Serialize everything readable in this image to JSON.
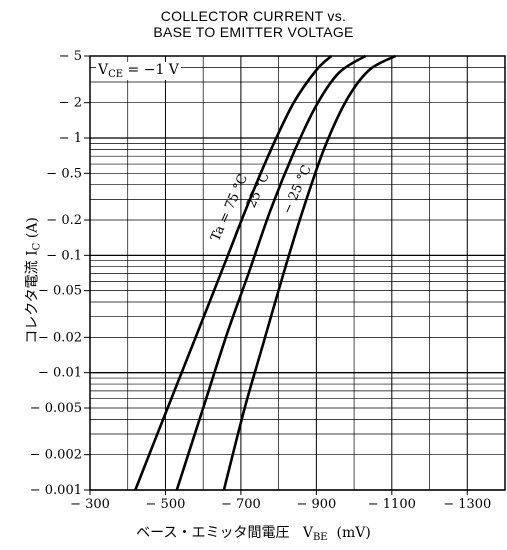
{
  "chart_data": {
    "type": "line",
    "title_line1": "COLLECTOR CURRENT vs.",
    "title_line2": "BASE TO EMITTER VOLTAGE",
    "xlabel_prefix": "ベース・エミッタ間電圧",
    "xlabel_symbol": "V",
    "xlabel_sub": "BE",
    "xlabel_unit": "(mV)",
    "ylabel_prefix": "コレクタ電流",
    "ylabel_symbol": "I",
    "ylabel_sub": "C",
    "ylabel_unit": "(A)",
    "condition_symbol": "V",
    "condition_sub": "CE",
    "condition_value": "= −1 V",
    "x_ticks": [
      {
        "value": -300,
        "label": "− 300"
      },
      {
        "value": -500,
        "label": "− 500"
      },
      {
        "value": -700,
        "label": "− 700"
      },
      {
        "value": -900,
        "label": "− 900"
      },
      {
        "value": -1100,
        "label": "− 1100"
      },
      {
        "value": -1300,
        "label": "− 1300"
      }
    ],
    "y_ticks": [
      {
        "value": -5,
        "label": "− 5"
      },
      {
        "value": -2,
        "label": "− 2"
      },
      {
        "value": -1,
        "label": "− 1"
      },
      {
        "value": -0.5,
        "label": "− 0.5"
      },
      {
        "value": -0.2,
        "label": "− 0.2"
      },
      {
        "value": -0.1,
        "label": "− 0.1"
      },
      {
        "value": -0.05,
        "label": "− 0.05"
      },
      {
        "value": -0.02,
        "label": "− 0.02"
      },
      {
        "value": -0.01,
        "label": "− 0.01"
      },
      {
        "value": -0.005,
        "label": "− 0.005"
      },
      {
        "value": -0.002,
        "label": "− 0.002"
      },
      {
        "value": -0.001,
        "label": "− 0.001"
      }
    ],
    "xlim": [
      -300,
      -1400
    ],
    "ylim": [
      -0.001,
      -5
    ],
    "yscale": "log",
    "grid": true,
    "series": [
      {
        "name": "Ta = 75 °C",
        "x": [
          -420,
          -500,
          -580,
          -660,
          -720,
          -780,
          -840,
          -900,
          -940
        ],
        "y": [
          -0.001,
          -0.0045,
          -0.02,
          -0.09,
          -0.28,
          -0.8,
          -2.0,
          -3.8,
          -5
        ]
      },
      {
        "name": "25 °C",
        "x": [
          -530,
          -600,
          -660,
          -720,
          -780,
          -840,
          -900,
          -960,
          -1030
        ],
        "y": [
          -0.001,
          -0.005,
          -0.02,
          -0.07,
          -0.25,
          -0.75,
          -1.9,
          -3.6,
          -5
        ]
      },
      {
        "name": "− 25 °C",
        "x": [
          -655,
          -710,
          -760,
          -810,
          -860,
          -920,
          -980,
          -1040,
          -1110
        ],
        "y": [
          -0.001,
          -0.005,
          -0.018,
          -0.065,
          -0.22,
          -0.8,
          -2.1,
          -3.8,
          -5
        ]
      }
    ]
  }
}
